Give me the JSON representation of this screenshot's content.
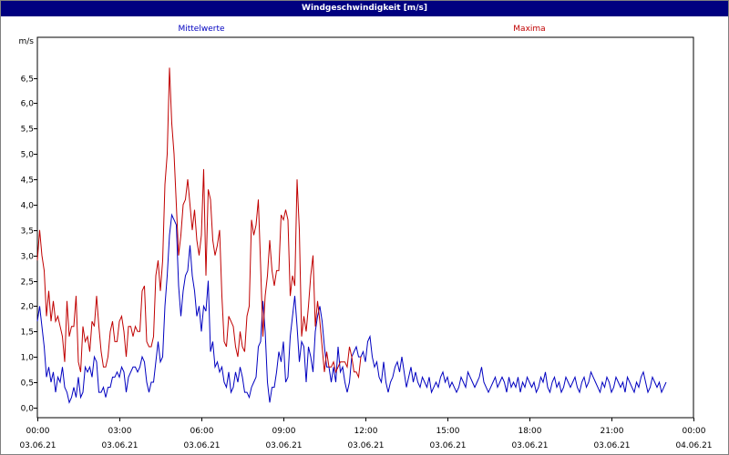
{
  "window": {
    "title": "Windgeschwindigkeit [m/s]"
  },
  "chart_data": {
    "type": "line",
    "title": "Windgeschwindigkeit [m/s]",
    "ylabel": "m/s",
    "ylim": [
      -0.2,
      7.3
    ],
    "xlim": [
      0,
      288
    ],
    "grid": true,
    "legend": "top",
    "yticks": [
      0,
      0.5,
      1,
      1.5,
      2,
      2.5,
      3,
      3.5,
      4,
      4.5,
      5,
      5.5,
      6,
      6.5
    ],
    "ytick_labels": [
      "0,0",
      "0,5",
      "1,0",
      "1,5",
      "2,0",
      "2,5",
      "3,0",
      "3,5",
      "4,0",
      "4,5",
      "5,0",
      "5,5",
      "6,0",
      "6,5"
    ],
    "xticks": [
      {
        "time": "00:00",
        "date": "03.06.21"
      },
      {
        "time": "03:00",
        "date": "03.06.21"
      },
      {
        "time": "06:00",
        "date": "03.06.21"
      },
      {
        "time": "09:00",
        "date": "03.06.21"
      },
      {
        "time": "12:00",
        "date": "03.06.21"
      },
      {
        "time": "15:00",
        "date": "03.06.21"
      },
      {
        "time": "18:00",
        "date": "03.06.21"
      },
      {
        "time": "21:00",
        "date": "03.06.21"
      },
      {
        "time": "00:00",
        "date": "04.06.21"
      }
    ],
    "x_step_minutes": 15,
    "series": [
      {
        "name": "Mittelwerte",
        "color": "#0000c0",
        "values": [
          1.7,
          2.0,
          1.6,
          1.2,
          0.6,
          0.8,
          0.5,
          0.7,
          0.3,
          0.6,
          0.5,
          0.8,
          0.4,
          0.3,
          0.1,
          0.2,
          0.4,
          0.2,
          0.6,
          0.2,
          0.3,
          0.8,
          0.7,
          0.8,
          0.6,
          1.0,
          0.9,
          0.3,
          0.3,
          0.4,
          0.2,
          0.4,
          0.4,
          0.6,
          0.6,
          0.7,
          0.6,
          0.8,
          0.7,
          0.3,
          0.6,
          0.7,
          0.8,
          0.8,
          0.7,
          0.8,
          1.0,
          0.9,
          0.5,
          0.3,
          0.5,
          0.5,
          0.9,
          1.3,
          0.9,
          1.0,
          2.0,
          2.6,
          3.4,
          3.8,
          3.7,
          3.6,
          2.4,
          1.8,
          2.3,
          2.6,
          2.7,
          3.2,
          2.6,
          2.3,
          1.8,
          2.0,
          1.5,
          2.0,
          1.9,
          2.5,
          1.1,
          1.3,
          0.8,
          0.9,
          0.7,
          0.8,
          0.5,
          0.4,
          0.7,
          0.3,
          0.4,
          0.7,
          0.5,
          0.8,
          0.6,
          0.3,
          0.3,
          0.2,
          0.4,
          0.5,
          0.6,
          1.2,
          1.3,
          2.1,
          1.5,
          0.5,
          0.1,
          0.4,
          0.4,
          0.7,
          1.1,
          0.9,
          1.3,
          0.5,
          0.6,
          1.4,
          1.8,
          2.2,
          1.6,
          0.9,
          1.3,
          1.2,
          0.5,
          1.2,
          1.0,
          0.7,
          1.5,
          1.8,
          2.0,
          1.7,
          1.2,
          0.8,
          0.8,
          0.5,
          0.8,
          0.5,
          1.2,
          0.7,
          0.8,
          0.5,
          0.3,
          0.5,
          1.0,
          1.1,
          1.2,
          1.0,
          1.0,
          1.1,
          0.9,
          1.3,
          1.4,
          1.0,
          0.8,
          0.9,
          0.6,
          0.5,
          0.9,
          0.5,
          0.3,
          0.5,
          0.6,
          0.8,
          0.9,
          0.7,
          1.0,
          0.7,
          0.4,
          0.6,
          0.8,
          0.5,
          0.7,
          0.5,
          0.4,
          0.6,
          0.5,
          0.4,
          0.6,
          0.3,
          0.4,
          0.5,
          0.4,
          0.6,
          0.7,
          0.5,
          0.6,
          0.4,
          0.5,
          0.4,
          0.3,
          0.4,
          0.6,
          0.5,
          0.4,
          0.7,
          0.6,
          0.5,
          0.4,
          0.5,
          0.6,
          0.8,
          0.5,
          0.4,
          0.3,
          0.4,
          0.5,
          0.6,
          0.4,
          0.5,
          0.6,
          0.5,
          0.3,
          0.6,
          0.4,
          0.5,
          0.4,
          0.6,
          0.3,
          0.5,
          0.4,
          0.6,
          0.5,
          0.4,
          0.5,
          0.3,
          0.4,
          0.6,
          0.5,
          0.7,
          0.4,
          0.3,
          0.5,
          0.6,
          0.4,
          0.5,
          0.3,
          0.4,
          0.6,
          0.5,
          0.4,
          0.5,
          0.6,
          0.4,
          0.3,
          0.5,
          0.6,
          0.4,
          0.5,
          0.7,
          0.6,
          0.5,
          0.4,
          0.3,
          0.5,
          0.4,
          0.6,
          0.5,
          0.3,
          0.4,
          0.6,
          0.5,
          0.4,
          0.5,
          0.3,
          0.6,
          0.5,
          0.4,
          0.3,
          0.5,
          0.4,
          0.6,
          0.7,
          0.5,
          0.3,
          0.4,
          0.6,
          0.5,
          0.4,
          0.5,
          0.3,
          0.4,
          0.5
        ]
      },
      {
        "name": "Maxima",
        "color": "#c00000",
        "values": [
          2.9,
          3.5,
          3.0,
          2.7,
          1.8,
          2.3,
          1.7,
          2.1,
          1.7,
          1.8,
          1.6,
          1.4,
          0.9,
          2.1,
          1.4,
          1.6,
          1.6,
          2.2,
          0.9,
          0.7,
          1.6,
          1.3,
          1.4,
          1.1,
          1.7,
          1.6,
          2.2,
          1.6,
          1.1,
          0.8,
          0.8,
          1.0,
          1.5,
          1.7,
          1.3,
          1.3,
          1.7,
          1.8,
          1.5,
          1.0,
          1.6,
          1.6,
          1.4,
          1.6,
          1.5,
          1.5,
          2.3,
          2.4,
          1.3,
          1.2,
          1.2,
          1.4,
          2.6,
          2.9,
          2.3,
          2.9,
          4.4,
          5.0,
          6.7,
          5.6,
          5.0,
          4.0,
          3.0,
          3.4,
          4.0,
          4.1,
          4.5,
          4.0,
          3.5,
          3.9,
          3.3,
          3.0,
          3.4,
          4.7,
          2.6,
          4.3,
          4.1,
          3.3,
          3.0,
          3.2,
          3.5,
          2.2,
          1.3,
          1.2,
          1.8,
          1.7,
          1.6,
          1.2,
          1.0,
          1.5,
          1.2,
          1.1,
          1.8,
          2.0,
          3.7,
          3.4,
          3.6,
          4.1,
          2.8,
          1.4,
          2.2,
          2.6,
          3.3,
          2.7,
          2.4,
          2.7,
          2.7,
          3.8,
          3.7,
          3.9,
          3.7,
          2.2,
          2.6,
          2.4,
          4.5,
          3.5,
          1.4,
          1.8,
          1.5,
          2.0,
          2.6,
          3.0,
          1.6,
          2.1,
          1.7,
          1.2,
          0.7,
          1.1,
          0.8,
          0.8,
          0.9,
          0.7,
          0.8,
          0.9,
          0.9,
          0.9,
          0.8,
          1.2,
          1.0,
          0.7,
          0.7,
          0.6,
          1.0
        ]
      }
    ]
  }
}
